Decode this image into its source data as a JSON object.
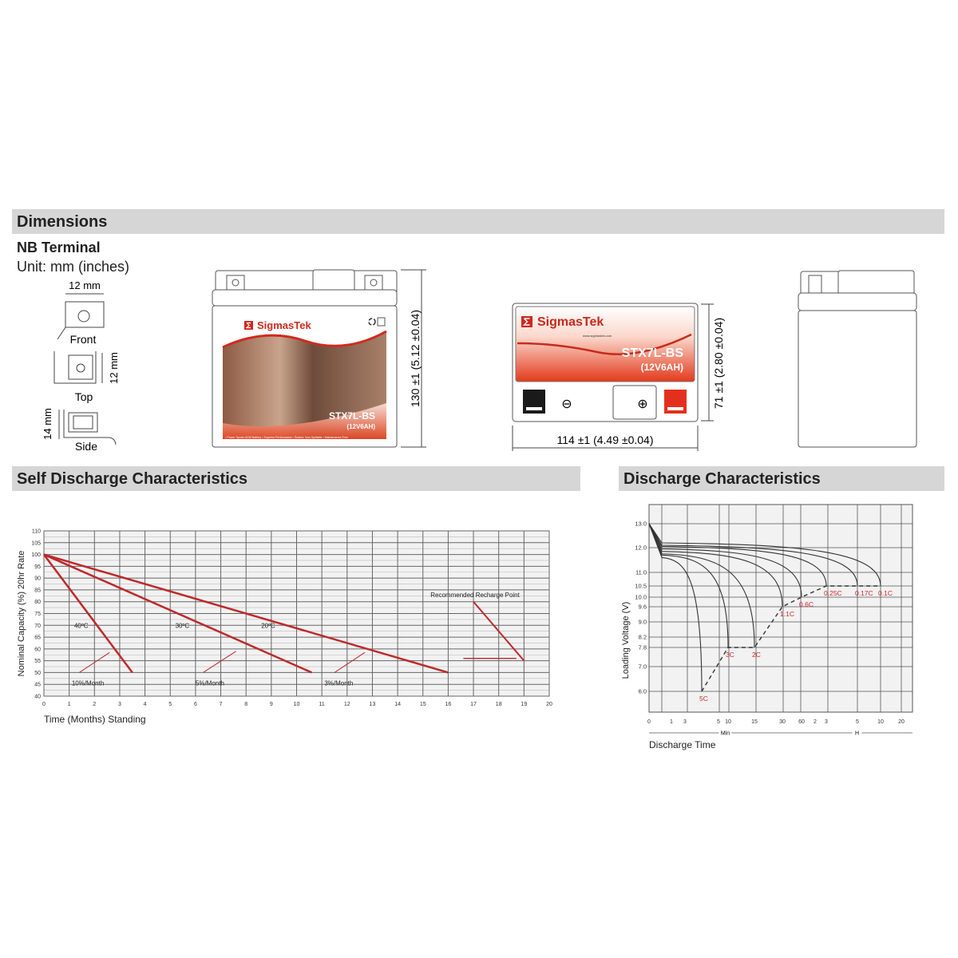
{
  "sections": {
    "dimensions": "Dimensions",
    "self_discharge": "Self Discharge Characteristics",
    "discharge": "Discharge Characteristics"
  },
  "terminal": {
    "title": "NB Terminal",
    "unit": "Unit: mm (inches)",
    "width_label": "12 mm",
    "front": "Front",
    "height_label": "12 mm",
    "top": "Top",
    "side_label": "14 mm",
    "side": "Side"
  },
  "battery": {
    "brand": "SigmasTek",
    "website": "www.sigmastek.com",
    "model": "STX7L-BS",
    "spec": "(12V6AH)",
    "features": "• Power Sports AGM Battery  • Superior Performance  • Sealed, Non-Spillable  • Maintenance-Free",
    "height_dim": "130 ±1 (5.12 ±0.04)",
    "depth_dim": "71 ±1 (2.80 ±0.04)",
    "length_dim": "114 ±1 (4.49 ±0.04)",
    "neg_symbol": "⊖",
    "pos_symbol": "⊕",
    "brand_color": "#e0301e"
  },
  "chart_data": [
    {
      "type": "line",
      "xlabel": "Time (Months) Standing",
      "ylabel": "Nominal Capacity (%) 20hr Rate",
      "xlim": [
        0,
        20
      ],
      "ylim": [
        40,
        110
      ],
      "xticks": [
        0,
        1,
        2,
        3,
        4,
        5,
        6,
        7,
        8,
        9,
        10,
        11,
        12,
        13,
        14,
        15,
        16,
        17,
        18,
        19,
        20
      ],
      "yticks": [
        40,
        45,
        50,
        55,
        60,
        65,
        70,
        75,
        80,
        85,
        90,
        95,
        100,
        105,
        110
      ],
      "grid": true,
      "line_color": "#c0282a",
      "series": [
        {
          "name": "40ºC",
          "rate": "10%/Month",
          "x": [
            0,
            3.5
          ],
          "y": [
            100,
            50
          ]
        },
        {
          "name": "30ºC",
          "rate": "5%/Month",
          "x": [
            0,
            10.6
          ],
          "y": [
            100,
            50
          ]
        },
        {
          "name": "20ºC",
          "rate": "3%/Month",
          "x": [
            0,
            16
          ],
          "y": [
            100,
            50
          ]
        }
      ],
      "annotation": "Recommended Recharge Point"
    },
    {
      "type": "line",
      "xlabel": "Discharge Time",
      "ylabel": "Loading  Voltage (V)",
      "yticks": [
        "13.0",
        "12.0",
        "11.0",
        "10.5",
        "10.0",
        "9.6",
        "9.0",
        "8.2",
        "7.8",
        "7.0",
        "6.0"
      ],
      "xtick_labels": [
        "0",
        "1",
        "3",
        "5",
        "10",
        "15",
        "30",
        "60",
        "2",
        "3",
        "5",
        "10",
        "20"
      ],
      "x_units": [
        {
          "label": "Min"
        },
        {
          "label": "H"
        }
      ],
      "grid": true,
      "series": [
        {
          "name": "5C",
          "plateau_v": 11.6,
          "end_min": 4,
          "end_v": 6.0
        },
        {
          "name": "3C",
          "plateau_v": 11.7,
          "end_min": 10,
          "end_v": 7.8
        },
        {
          "name": "2C",
          "plateau_v": 11.75,
          "end_min": 15,
          "end_v": 7.8
        },
        {
          "name": "1.1C",
          "plateau_v": 11.85,
          "end_min": 30,
          "end_v": 9.6
        },
        {
          "name": "0.6C",
          "plateau_v": 11.95,
          "end_min": 60,
          "end_v": 10.0
        },
        {
          "name": "0.25C",
          "plateau_v": 12.05,
          "end_min": 180,
          "end_v": 10.5
        },
        {
          "name": "0.17C",
          "plateau_v": 12.1,
          "end_min": 300,
          "end_v": 10.5
        },
        {
          "name": "0.1C",
          "plateau_v": 12.2,
          "end_min": 600,
          "end_v": 10.5
        }
      ],
      "label_color": "#d0282a"
    }
  ]
}
